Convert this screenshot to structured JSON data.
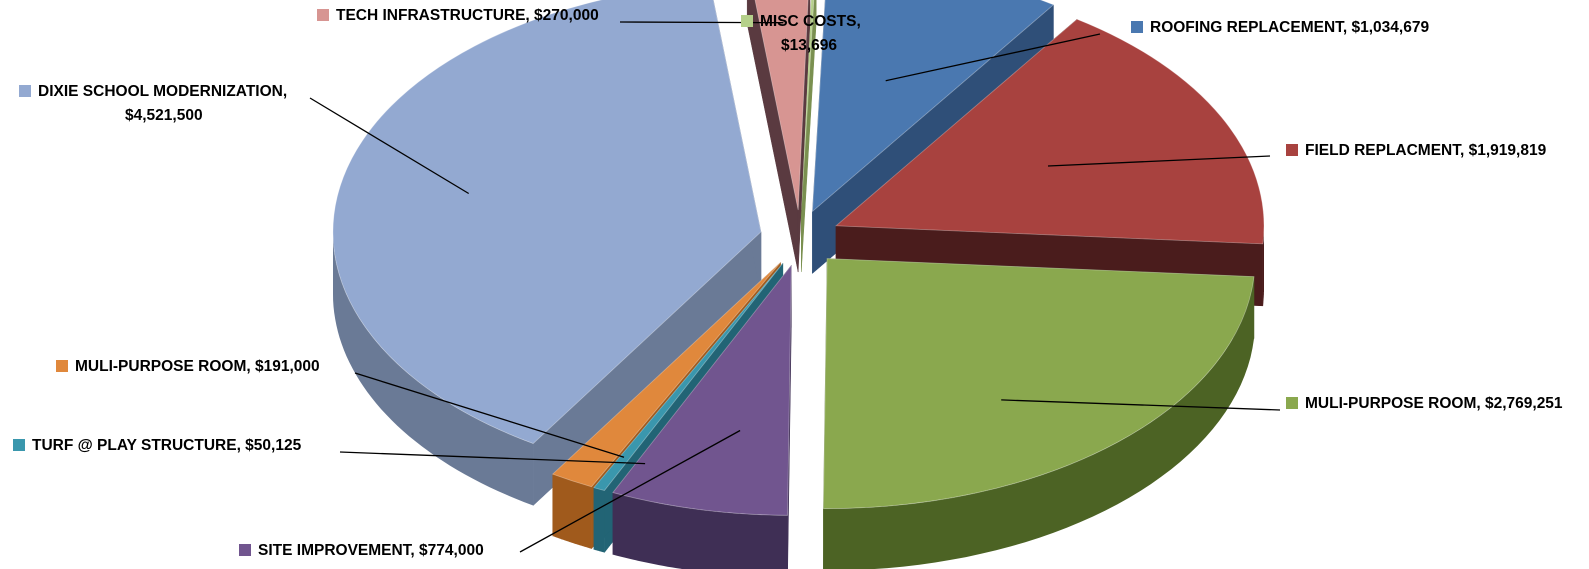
{
  "chart_data": {
    "type": "pie",
    "style": "3d-exploded",
    "title": "",
    "legend": "none",
    "slices": [
      {
        "label": "ROOFING REPLACEMENT",
        "value": 1034679,
        "value_text": "$1,034,679",
        "color": "#4a78b0",
        "dark": "#2f4f78"
      },
      {
        "label": "FIELD REPLACMENT",
        "value": 1919819,
        "value_text": "$1,919,819",
        "color": "#a8423f",
        "dark": "#4a1c1c"
      },
      {
        "label": "MULI-PURPOSE ROOM",
        "value": 2769251,
        "value_text": "$2,769,251",
        "color": "#8aa84e",
        "dark": "#4c6324"
      },
      {
        "label": "SITE IMPROVEMENT",
        "value": 774000,
        "value_text": "$774,000",
        "color": "#71558f",
        "dark": "#3f2f55"
      },
      {
        "label": "TURF @ PLAY STRUCTURE",
        "value": 50125,
        "value_text": "$50,125",
        "color": "#3a97ad",
        "dark": "#226475"
      },
      {
        "label": "MULI-PURPOSE ROOM",
        "value": 191000,
        "value_text": "$191,000",
        "color": "#e0883c",
        "dark": "#a05a1c"
      },
      {
        "label": "DIXIE SCHOOL MODERNIZATION",
        "value": 4521500,
        "value_text": "$4,521,500",
        "color": "#93a9d1",
        "dark": "#6a7a96"
      },
      {
        "label": "TECH INFRASTRUCTURE",
        "value": 270000,
        "value_text": "$270,000",
        "color": "#d79592",
        "dark": "#5a3a40"
      },
      {
        "label": "MISC COSTS",
        "value": 13696,
        "value_text": "$13,696",
        "color": "#b5d08a",
        "dark": "#7a9050"
      }
    ]
  }
}
